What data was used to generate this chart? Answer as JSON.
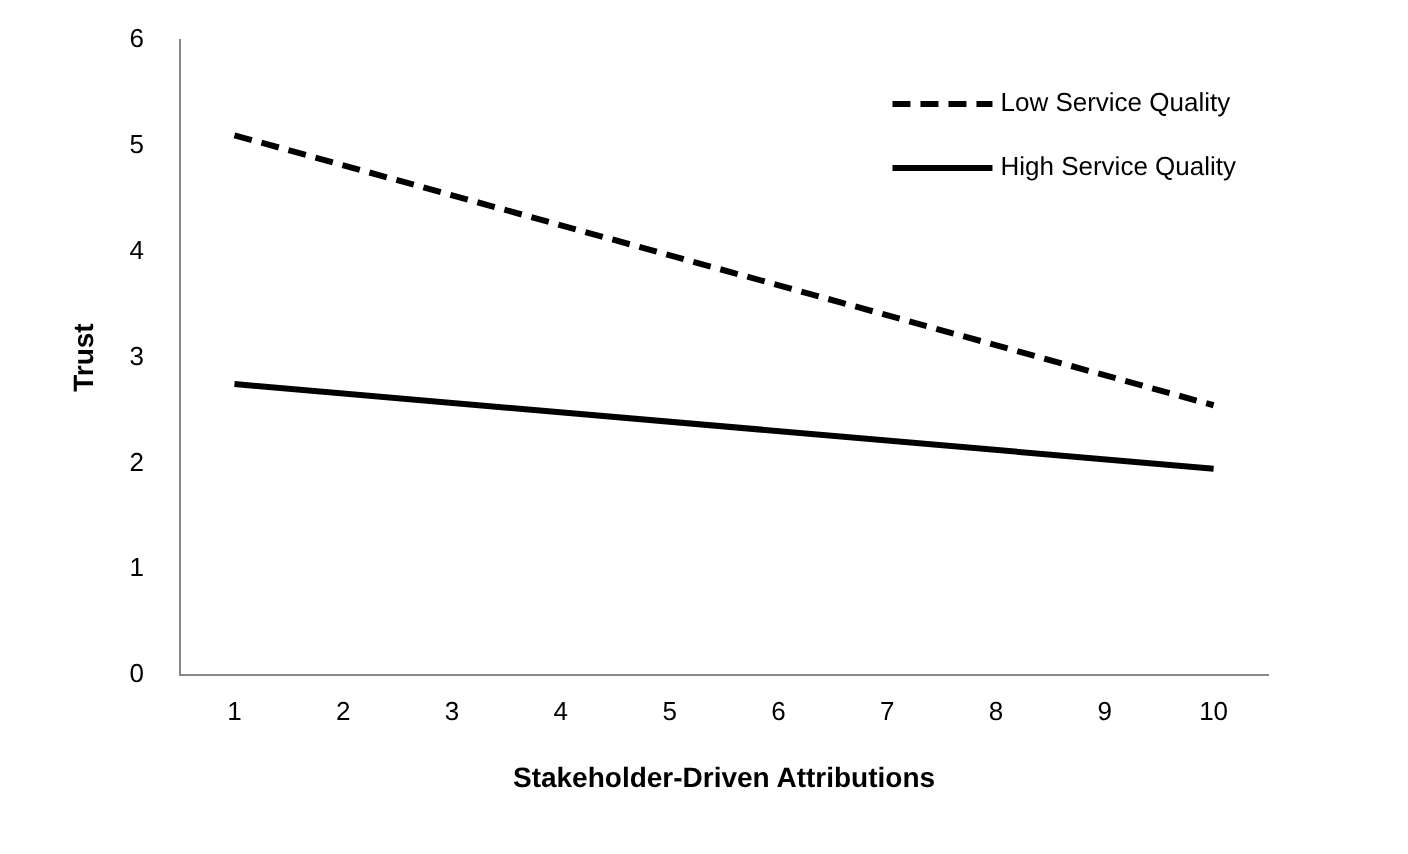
{
  "chart_data": {
    "type": "line",
    "xlabel": "Stakeholder-Driven Attributions",
    "ylabel": "Trust",
    "x": [
      1,
      10
    ],
    "xlim": [
      0.5,
      10.5
    ],
    "xticks": [
      1,
      2,
      3,
      4,
      5,
      6,
      7,
      8,
      9,
      10
    ],
    "ylim": [
      0,
      6
    ],
    "yticks": [
      0,
      1,
      2,
      3,
      4,
      5,
      6
    ],
    "grid": false,
    "legend": "top right",
    "marker": "none",
    "series": [
      {
        "name": "Low Service Quality",
        "color": "#000000",
        "values": [
          5.1,
          2.55
        ],
        "line_style": "dashed"
      },
      {
        "name": "High Service Quality",
        "color": "#000000",
        "values": [
          2.75,
          1.95
        ],
        "line_style": "solid"
      }
    ]
  }
}
